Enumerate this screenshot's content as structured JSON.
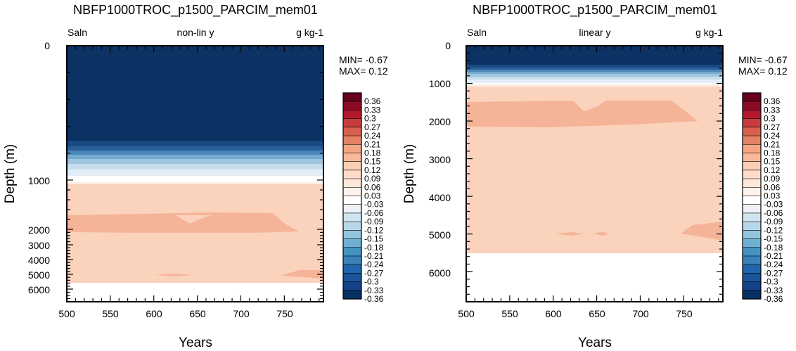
{
  "chart_data": [
    {
      "type": "heatmap",
      "title": "NBFP1000TROC_p1500_PARCIM_mem01",
      "left_string": "Saln",
      "center_string": "non-lin y",
      "right_string": "g kg-1",
      "xlabel": "Years",
      "ylabel": "Depth (m)",
      "xlim": [
        500,
        795
      ],
      "xticks": [
        "500",
        "550",
        "600",
        "650",
        "700",
        "750"
      ],
      "y_scale": "non-linear",
      "yticks": [
        "0",
        "1000",
        "2000",
        "3000",
        "4000",
        "5000",
        "6000"
      ],
      "min_text": "MIN= -0.67",
      "max_text": "MAX=  0.12",
      "layers": [
        {
          "depth_top": 0,
          "depth_bottom": 550,
          "value": -0.36
        },
        {
          "depth_top": 550,
          "depth_bottom": 950,
          "value": "gradient -0.36 to -0.03"
        },
        {
          "depth_top": 950,
          "depth_bottom": 1050,
          "value": 0.03
        },
        {
          "depth_top": 1050,
          "depth_bottom": 5500,
          "value": 0.09
        },
        {
          "depth_top": 1500,
          "depth_bottom": 2000,
          "value": 0.12,
          "note": "patch"
        },
        {
          "depth_top": 5500,
          "depth_bottom": 6800,
          "value": "no data"
        }
      ]
    },
    {
      "type": "heatmap",
      "title": "NBFP1000TROC_p1500_PARCIM_mem01",
      "left_string": "Saln",
      "center_string": "linear y",
      "right_string": "g kg-1",
      "xlabel": "Years",
      "ylabel": "Depth (m)",
      "xlim": [
        500,
        795
      ],
      "xticks": [
        "500",
        "550",
        "600",
        "650",
        "700",
        "750"
      ],
      "y_scale": "linear",
      "ylim": [
        0,
        6800
      ],
      "yticks": [
        "0",
        "1000",
        "2000",
        "3000",
        "4000",
        "5000",
        "6000"
      ],
      "min_text": "MIN= -0.67",
      "max_text": "MAX=  0.12",
      "layers": [
        {
          "depth_top": 0,
          "depth_bottom": 500,
          "value": -0.36
        },
        {
          "depth_top": 500,
          "depth_bottom": 1000,
          "value": "gradient -0.36 to -0.03"
        },
        {
          "depth_top": 1000,
          "depth_bottom": 1050,
          "value": 0.03
        },
        {
          "depth_top": 1050,
          "depth_bottom": 5500,
          "value": 0.09
        },
        {
          "depth_top": 1450,
          "depth_bottom": 2150,
          "value": 0.12,
          "note": "patch"
        },
        {
          "depth_top": 5500,
          "depth_bottom": 6800,
          "value": "no data"
        }
      ]
    }
  ],
  "colorbar": {
    "labels": [
      "0.36",
      "0.33",
      "0.3",
      "0.27",
      "0.24",
      "0.21",
      "0.18",
      "0.15",
      "0.12",
      "0.09",
      "0.06",
      "0.03",
      "-0.03",
      "-0.06",
      "-0.09",
      "-0.12",
      "-0.15",
      "-0.18",
      "-0.21",
      "-0.24",
      "-0.27",
      "-0.3",
      "-0.33",
      "-0.36"
    ],
    "colors": [
      "#67001f",
      "#8a0b25",
      "#b2182b",
      "#c43c3c",
      "#d6604d",
      "#e58267",
      "#f4a582",
      "#f7b799",
      "#fbcfb5",
      "#fddbc7",
      "#fde8da",
      "#fdf3ec",
      "#ffffff",
      "#ecf2f7",
      "#d1e5f0",
      "#b8d8ea",
      "#92c5de",
      "#6fafd3",
      "#4393c3",
      "#3a80b9",
      "#2166ac",
      "#1a549a",
      "#134289",
      "#053061"
    ]
  },
  "colors": {
    "deep": "#0b3262",
    "main": "#fbd3bd",
    "patch": "#f5b497",
    "nodata": "#ffffff"
  }
}
